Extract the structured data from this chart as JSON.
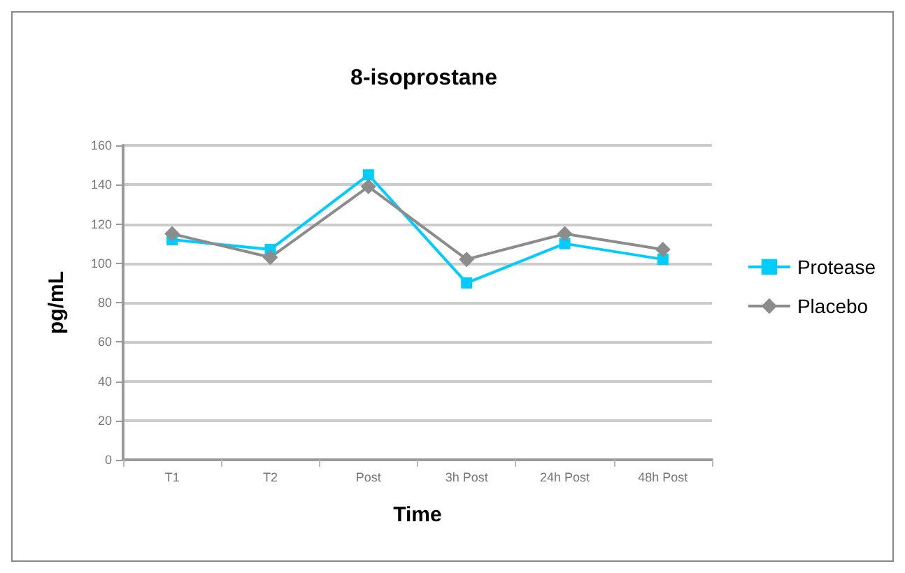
{
  "chart_data": {
    "type": "line",
    "title": "8-isoprostane",
    "xlabel": "Time",
    "ylabel": "pg/mL",
    "categories": [
      "T1",
      "T2",
      "Post",
      "3h Post",
      "24h Post",
      "48h Post"
    ],
    "series": [
      {
        "name": "Protease",
        "color": "#00ccff",
        "marker": "square",
        "values": [
          112,
          107,
          145,
          90,
          110,
          102
        ]
      },
      {
        "name": "Placebo",
        "color": "#8c8c8c",
        "marker": "diamond",
        "values": [
          115,
          103,
          139,
          102,
          115,
          107
        ]
      }
    ],
    "ylim": [
      0,
      160
    ],
    "yticks": [
      0,
      20,
      40,
      60,
      80,
      100,
      120,
      140,
      160
    ],
    "grid": "y",
    "legend": "right",
    "line_style": "solid"
  }
}
